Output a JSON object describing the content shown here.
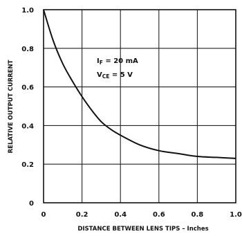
{
  "chart_data": {
    "type": "line",
    "xlabel": "DISTANCE BETWEEN LENS TIPS – Inches",
    "ylabel": "RELATIVE OUTPUT CURRENT",
    "xlim": [
      0,
      1.0
    ],
    "ylim": [
      0,
      1.0
    ],
    "grid": true,
    "x_ticks": [
      "0",
      "0.2",
      "0.4",
      "0.6",
      "0.8",
      "1.0"
    ],
    "y_ticks": [
      "0",
      "0.2",
      "0.4",
      "0.6",
      "0.8",
      "1.0"
    ],
    "annotations": [
      "IF = 20 mA",
      "VCE = 5 V"
    ],
    "series": [
      {
        "x": [
          0,
          0.05,
          0.1,
          0.15,
          0.2,
          0.25,
          0.3,
          0.35,
          0.4,
          0.5,
          0.6,
          0.7,
          0.8,
          0.9,
          1.0
        ],
        "y": [
          1.0,
          0.84,
          0.72,
          0.63,
          0.55,
          0.48,
          0.42,
          0.38,
          0.35,
          0.3,
          0.27,
          0.255,
          0.24,
          0.235,
          0.23
        ]
      }
    ]
  }
}
